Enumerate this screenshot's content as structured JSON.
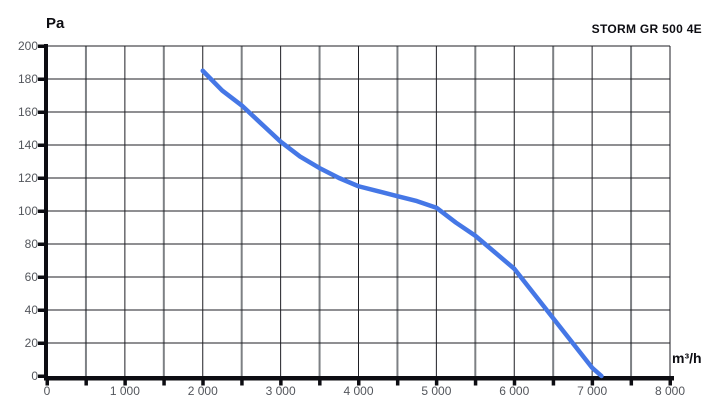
{
  "page": {
    "background": "#ffffff"
  },
  "chart_data": {
    "type": "line",
    "title": "STORM GR 500 4E",
    "ylabel": "Pa",
    "xlabel": "m³/h",
    "xlim": [
      0,
      8000
    ],
    "ylim": [
      0,
      200
    ],
    "x_major_step": 1000,
    "x_minor_step": 500,
    "y_step": 20,
    "x_tick_labels": [
      "0",
      "1 000",
      "2 000",
      "3 000",
      "4 000",
      "5 000",
      "6 000",
      "7 000",
      "8 000"
    ],
    "y_tick_labels": [
      "0",
      "20",
      "40",
      "60",
      "80",
      "100",
      "120",
      "140",
      "160",
      "180",
      "200"
    ],
    "grid": true,
    "legend_position": "none",
    "colors": {
      "curve": "#4577e6",
      "grid_major": "#1f1f24",
      "grid_minor": "#7d8084",
      "axis": "#0d0d12",
      "tick_text": "#53565c"
    },
    "series": [
      {
        "name": "STORM GR 500 4E",
        "points": [
          [
            2000,
            185
          ],
          [
            2250,
            173
          ],
          [
            2500,
            164
          ],
          [
            2750,
            153
          ],
          [
            3000,
            142
          ],
          [
            3250,
            133
          ],
          [
            3500,
            126
          ],
          [
            3750,
            120
          ],
          [
            4000,
            115
          ],
          [
            4250,
            112
          ],
          [
            4500,
            109
          ],
          [
            4750,
            106
          ],
          [
            5000,
            102
          ],
          [
            5250,
            93
          ],
          [
            5500,
            85
          ],
          [
            5750,
            75
          ],
          [
            6000,
            65
          ],
          [
            6250,
            50
          ],
          [
            6500,
            35
          ],
          [
            6750,
            20
          ],
          [
            7000,
            5
          ],
          [
            7120,
            0
          ]
        ]
      }
    ]
  }
}
